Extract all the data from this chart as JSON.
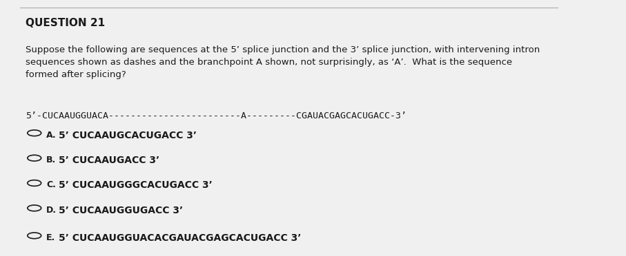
{
  "title": "QUESTION 21",
  "question_text": "Suppose the following are sequences at the 5’ splice junction and the 3’ splice junction, with intervening intron\nsequences shown as dashes and the branchpoint A shown, not surprisingly, as ‘A’.  What is the sequence\nformed after splicing?",
  "sequence_line": "5’-CUCAAUGGUACA------------------------A---------CGAUACGAGCACUGACC-3’",
  "options": [
    {
      "label": "A.",
      "text": "5’ CUCAAUGCACUGACC 3’"
    },
    {
      "label": "B.",
      "text": "5’ CUCAAUGACC 3’"
    },
    {
      "label": "C.",
      "text": "5’ CUCAAUGGGCACUGACC 3’"
    },
    {
      "label": "D.",
      "text": "5’ CUCAAUGGUGACC 3’"
    },
    {
      "label": "E.",
      "text": "5’ CUCAAUGGUACACGAUACGAGCACUGACC 3’"
    }
  ],
  "bg_color": "#f0f0f0",
  "text_color": "#1a1a1a",
  "title_fontsize": 11,
  "question_fontsize": 9.5,
  "sequence_fontsize": 9.5,
  "option_fontsize": 10,
  "option_label_fontsize": 9
}
